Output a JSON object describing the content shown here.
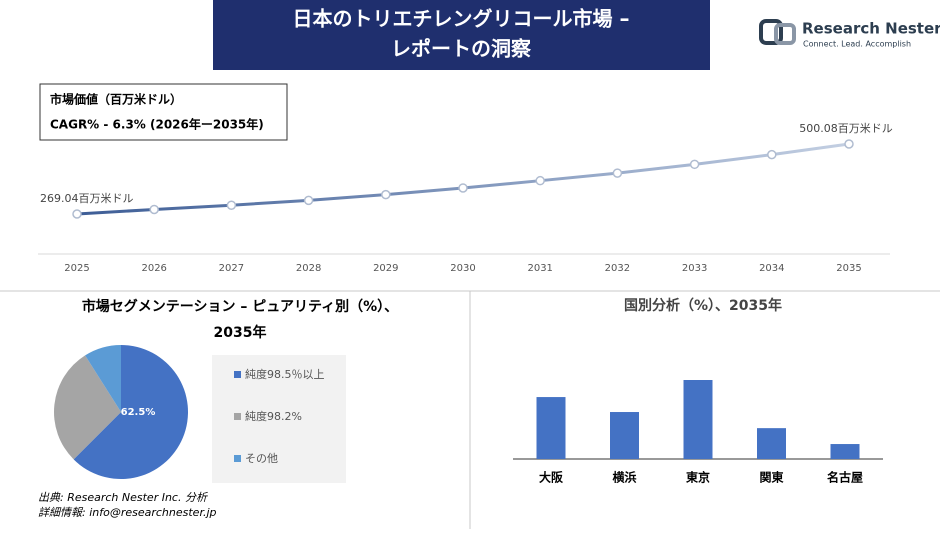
{
  "header": {
    "title": [
      "日本のトリエチレングリコール市場 –",
      "レポートの洞察"
    ]
  },
  "logo": {
    "name": "Research Nester",
    "tagline": "Connect. Lead. Accomplish"
  },
  "info": {
    "unit": "市場価値（百万米ドル）",
    "cagr": "CAGR% - 6.3% (2026年ー2035年)"
  },
  "source": [
    "出典: Research Nester Inc. 分析",
    "詳細情報: info@researchnester.jp"
  ],
  "chart_data": [
    {
      "type": "line",
      "categories": [
        "2025",
        "2026",
        "2027",
        "2028",
        "2029",
        "2030",
        "2031",
        "2032",
        "2033",
        "2034",
        "2035"
      ],
      "values": [
        269.04,
        284,
        298,
        314,
        333,
        355,
        379,
        404,
        433,
        465,
        500.08
      ],
      "value_labels": [
        "269.04百万米ドル",
        null,
        null,
        null,
        null,
        null,
        null,
        null,
        null,
        null,
        "500.08百万米ドル"
      ],
      "colors": [
        "#3d5d96",
        "#c3cfe2"
      ]
    },
    {
      "type": "pie",
      "title": [
        "市場セグメンテーション – ピュアリティ別（%）、",
        "2035年"
      ],
      "categories": [
        "純度98.5％以上",
        "純度98.2%",
        "その他"
      ],
      "values": [
        62.5,
        28.5,
        9
      ],
      "value_labels": [
        "62.5%",
        null,
        null
      ],
      "colors": [
        "#4472c4",
        "#a5a5a5",
        "#5b9bd5"
      ]
    },
    {
      "type": "bar",
      "title": "国別分析（%）、2035年",
      "categories": [
        "大阪",
        "横浜",
        "東京",
        "関東",
        "名古屋"
      ],
      "values": [
        26.5,
        20.1,
        33.8,
        13.2,
        6.4
      ],
      "color": "#4472c4"
    }
  ]
}
